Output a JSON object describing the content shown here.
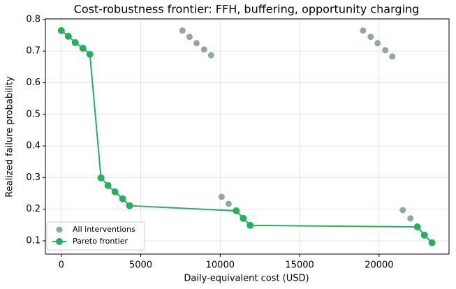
{
  "chart_data": {
    "type": "scatter",
    "title": "Cost-robustness frontier: FFH, buffering, opportunity charging",
    "xlabel": "Daily-equivalent cost (USD)",
    "ylabel": "Realized failure probability",
    "xlim": [
      -1000,
      24400
    ],
    "ylim": [
      0.058,
      0.802
    ],
    "xticks": [
      0,
      5000,
      10000,
      15000,
      20000
    ],
    "yticks": [
      0.1,
      0.2,
      0.3,
      0.4,
      0.5,
      0.6,
      0.7,
      0.8
    ],
    "grid": true,
    "legend": "lower left",
    "series": [
      {
        "name": "All interventions",
        "type": "scatter",
        "color": "#95a5a6",
        "x": [
          7630,
          8070,
          8510,
          8990,
          9430,
          10090,
          10530,
          18990,
          19470,
          19910,
          20390,
          20830,
          21490,
          21970
        ],
        "values": [
          0.765,
          0.745,
          0.725,
          0.705,
          0.687,
          0.239,
          0.217,
          0.765,
          0.745,
          0.725,
          0.703,
          0.683,
          0.197,
          0.171
        ]
      },
      {
        "name": "Pareto frontier",
        "type": "line",
        "color": "#27ae60",
        "x": [
          0,
          440,
          877,
          1360,
          1800,
          2500,
          2940,
          3380,
          3860,
          4300,
          11010,
          11450,
          11890,
          22410,
          22850,
          23330
        ],
        "values": [
          0.765,
          0.747,
          0.727,
          0.709,
          0.69,
          0.299,
          0.275,
          0.255,
          0.233,
          0.211,
          0.195,
          0.171,
          0.149,
          0.144,
          0.118,
          0.094
        ]
      }
    ]
  }
}
